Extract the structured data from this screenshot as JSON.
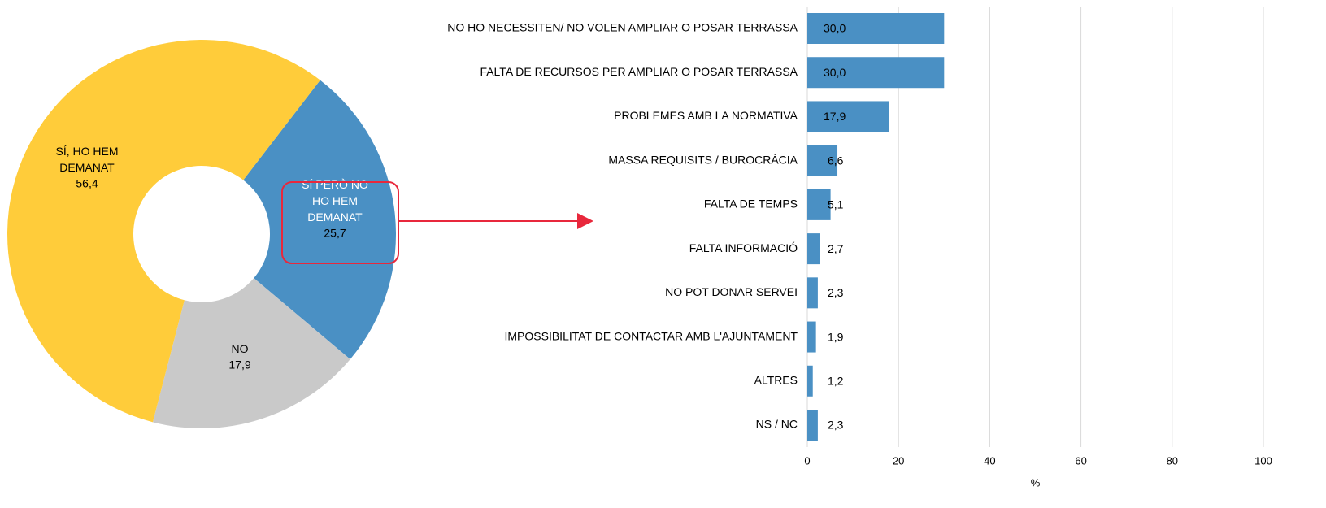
{
  "chart_data": [
    {
      "type": "pie",
      "donut": true,
      "categories": [
        "SÍ PERÒ NO HO HEM DEMANAT",
        "NO",
        "SÍ, HO HEM DEMANAT"
      ],
      "values": [
        25.7,
        17.9,
        56.4
      ],
      "value_labels": [
        "25,7",
        "17,9",
        "56,4"
      ],
      "colors": [
        "#4a90c4",
        "#c9c9c9",
        "#ffcc3a"
      ]
    },
    {
      "type": "bar",
      "orientation": "horizontal",
      "categories": [
        "NO HO NECESSITEN/ NO VOLEN AMPLIAR O POSAR TERRASSA",
        "FALTA DE RECURSOS PER AMPLIAR O POSAR TERRASSA",
        "PROBLEMES AMB LA NORMATIVA",
        "MASSA REQUISITS / BUROCRÀCIA",
        "FALTA DE TEMPS",
        "FALTA INFORMACIÓ",
        "NO POT DONAR SERVEI",
        "IMPOSSIBILITAT DE CONTACTAR AMB L'AJUNTAMENT",
        "ALTRES",
        "NS / NC"
      ],
      "values": [
        30.0,
        30.0,
        17.9,
        6.6,
        5.1,
        2.7,
        2.3,
        1.9,
        1.2,
        2.3
      ],
      "value_labels": [
        "30,0",
        "30,0",
        "17,9",
        "6,6",
        "5,1",
        "2,7",
        "2,3",
        "1,9",
        "1,2",
        "2,3"
      ],
      "color": "#4a90c4",
      "xlim": [
        0,
        100
      ],
      "xticks": [
        0,
        20,
        40,
        60,
        80,
        100
      ],
      "xlabel": "%",
      "grid": true
    }
  ]
}
